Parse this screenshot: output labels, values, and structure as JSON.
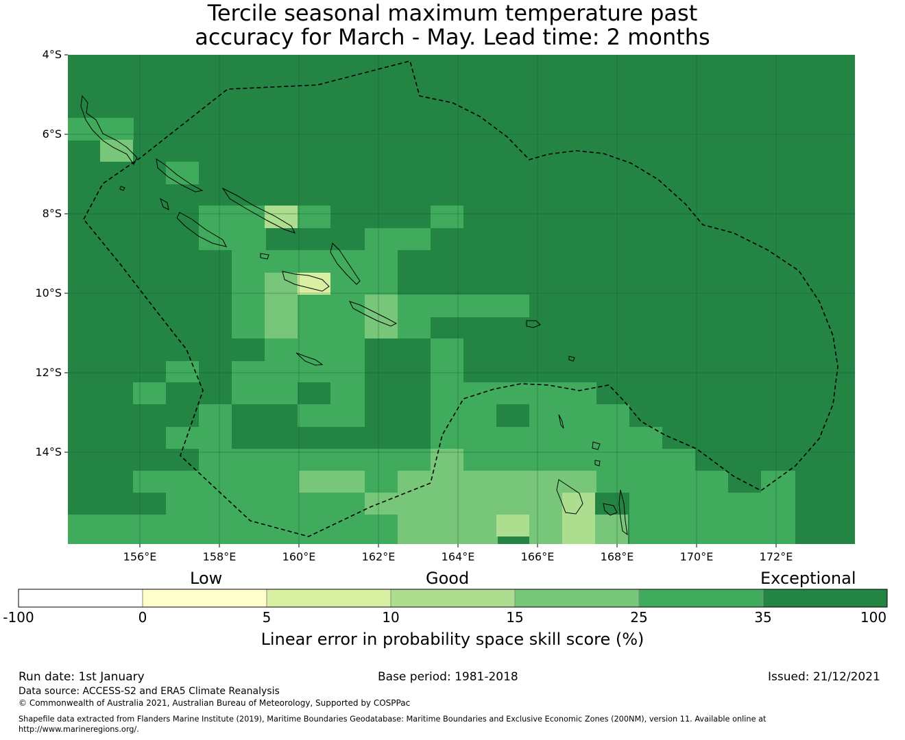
{
  "title": {
    "line1": "Tercile seasonal maximum temperature past",
    "line2": "accuracy for March - May. Lead time: 2 months"
  },
  "map": {
    "latitudes": [
      "4°S",
      "6°S",
      "8°S",
      "10°S",
      "12°S",
      "14°S"
    ],
    "longitudes": [
      "156°E",
      "158°E",
      "160°E",
      "162°E",
      "164°E",
      "166°E",
      "168°E",
      "170°E",
      "172°E"
    ],
    "extent": {
      "lon_min": 154.2,
      "lon_max": 174.0,
      "lat_north": -4.0,
      "lat_south": -16.3
    },
    "eez_boundary_style": "dashed",
    "skill_classes": [
      "#238443",
      "#41ab5d",
      "#78c679",
      "#addd8e",
      "#d9f0a3"
    ],
    "grid_description": "Mostly exceptional (35-100) with good (10-35) areas near the Solomon Islands and north Vanuatu"
  },
  "colorbar": {
    "categories": [
      "Low",
      "Good",
      "Exceptional"
    ],
    "ticks": [
      "-100",
      "0",
      "5",
      "10",
      "15",
      "25",
      "35",
      "100"
    ],
    "colors": [
      "#ffffff",
      "#ffffcc",
      "#d9f0a3",
      "#addd8e",
      "#78c679",
      "#41ab5d",
      "#238443"
    ],
    "label": "Linear error in probability space skill score (%)"
  },
  "footer": {
    "run_date": "Run date: 1st January",
    "base_period": "Base period: 1981-2018",
    "issued": "Issued: 21/12/2021",
    "data_source": "Data source: ACCESS-S2 and ERA5 Climate Reanalysis",
    "copyright": "© Commonwealth of Australia 2021, Australian Bureau of Meteorology, Supported by COSPPac",
    "shapefile_line1": "Shapefile data extracted from Flanders Marine Institute (2019), Maritime Boundaries Geodatabase: Maritime Boundaries and Exclusive Economic Zones (200NM), version 11. Available online at",
    "shapefile_line2": "http://www.marineregions.org/."
  }
}
